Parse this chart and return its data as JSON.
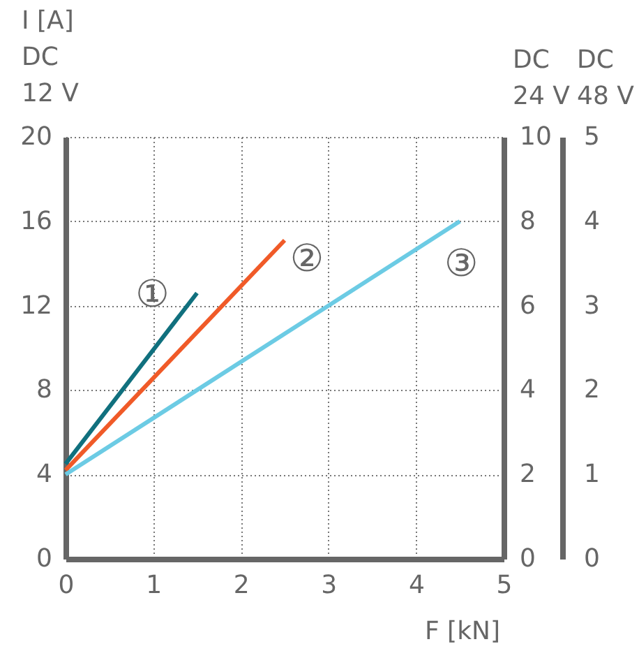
{
  "chart_data": {
    "type": "line",
    "xlabel": "F [kN]",
    "ylabel": "I [A]\nDC\n12 V",
    "y2label": "DC\n24 V",
    "y3label": "DC\n48 V",
    "xlim": [
      0,
      5
    ],
    "xticks": [
      0,
      1,
      2,
      3,
      4,
      5
    ],
    "ylim": [
      0,
      20
    ],
    "yticks": [
      0,
      4,
      8,
      12,
      16,
      20
    ],
    "y2lim": [
      0,
      10
    ],
    "y2ticks": [
      0,
      2,
      4,
      6,
      8,
      10
    ],
    "y3lim": [
      0,
      5
    ],
    "y3ticks": [
      0,
      1,
      2,
      3,
      4,
      5
    ],
    "grid": true,
    "series": [
      {
        "name": "①",
        "color": "#10707e",
        "x": [
          0,
          1.5
        ],
        "values": [
          4.5,
          12.6
        ]
      },
      {
        "name": "②",
        "color": "#f05a28",
        "x": [
          0,
          2.5
        ],
        "values": [
          4.2,
          15.1
        ]
      },
      {
        "name": "③",
        "color": "#6ccbe4",
        "x": [
          0,
          4.5
        ],
        "values": [
          4.0,
          16.0
        ]
      }
    ]
  }
}
